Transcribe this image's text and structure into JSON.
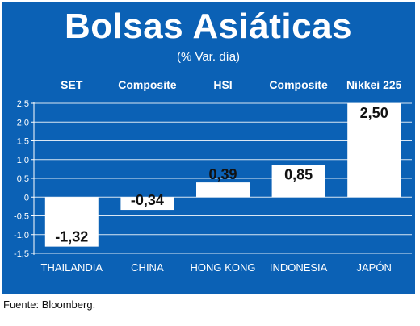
{
  "chart_data": {
    "type": "bar",
    "title": "Bolsas Asiáticas",
    "subtitle": "(% Var. día)",
    "indices": [
      "SET",
      "Composite",
      "HSI",
      "Composite",
      "Nikkei 225"
    ],
    "categories": [
      "THAILANDIA",
      "CHINA",
      "HONG KONG",
      "INDONESIA",
      "JAPÓN"
    ],
    "values": [
      -1.32,
      -0.34,
      0.39,
      0.85,
      2.5
    ],
    "value_labels": [
      "-1,32",
      "-0,34",
      "0,39",
      "0,85",
      "2,50"
    ],
    "ylim": [
      -1.5,
      2.5
    ],
    "yticks": [
      2.5,
      2.0,
      1.5,
      1.0,
      0.5,
      0,
      -0.5,
      -1.0,
      -1.5
    ],
    "ytick_labels": [
      "2,5",
      "2,0",
      "1,5",
      "1,0",
      "0,5",
      "0",
      "-0,5",
      "-1,0",
      "-1,5"
    ],
    "grid": true,
    "bar_color": "#ffffff",
    "background_color": "#0b61b5"
  },
  "source": "Fuente: Bloomberg."
}
